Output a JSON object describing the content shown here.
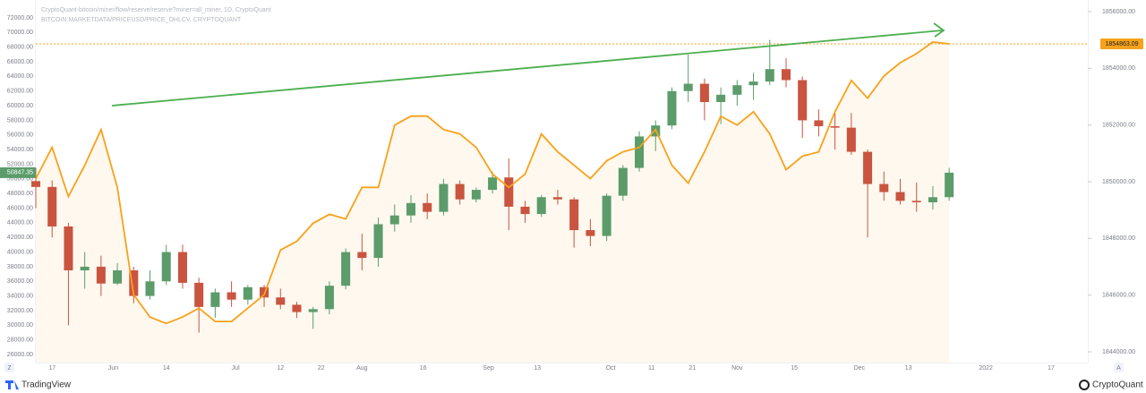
{
  "chart_data": {
    "type": "candlestick",
    "title": "CryptoQuant-bitcoin/miner/flow/reserve/reserve?miner=all_miner, 1D, CryptoQuant",
    "subtitle": "BITCOIN:MARKETDATA/PRICEUSD/PRICE_OHLCV, CRYPTOQUANT",
    "footer_left": "TradingView",
    "footer_right": "CryptoQuant",
    "corner_left": "Z",
    "corner_right": "A",
    "grid": true,
    "up_color": "#5b9c6a",
    "down_color": "#c9543f",
    "xlim": [
      "2021-05-13",
      "2022-01-26"
    ],
    "xticks": [
      {
        "value": "2021-05-17",
        "label": "17"
      },
      {
        "value": "2021-06-01",
        "label": "Jun"
      },
      {
        "value": "2021-06-14",
        "label": "14"
      },
      {
        "value": "2021-07-01",
        "label": "Jul"
      },
      {
        "value": "2021-07-12",
        "label": "12"
      },
      {
        "value": "2021-07-22",
        "label": "22"
      },
      {
        "value": "2021-08-01",
        "label": "Aug"
      },
      {
        "value": "2021-08-16",
        "label": "16"
      },
      {
        "value": "2021-09-01",
        "label": "Sep"
      },
      {
        "value": "2021-09-13",
        "label": "13"
      },
      {
        "value": "2021-10-01",
        "label": "Oct"
      },
      {
        "value": "2021-10-11",
        "label": "11"
      },
      {
        "value": "2021-10-21",
        "label": "21"
      },
      {
        "value": "2021-11-01",
        "label": "Nov"
      },
      {
        "value": "2021-11-15",
        "label": "15"
      },
      {
        "value": "2021-12-01",
        "label": "Dec"
      },
      {
        "value": "2021-12-13",
        "label": "13"
      },
      {
        "value": "2022-01-01",
        "label": "2022"
      },
      {
        "value": "2022-01-17",
        "label": "17"
      }
    ],
    "ylim": [
      26000,
      72000
    ],
    "yticks": [
      {
        "value": 72000,
        "label": "72000.00"
      },
      {
        "value": 70000,
        "label": "70000.00"
      },
      {
        "value": 68000,
        "label": "68000.00"
      },
      {
        "value": 66000,
        "label": "66000.00"
      },
      {
        "value": 64000,
        "label": "64000.00"
      },
      {
        "value": 62000,
        "label": "62000.00"
      },
      {
        "value": 60000,
        "label": "60000.00"
      },
      {
        "value": 58000,
        "label": "58000.00"
      },
      {
        "value": 56000,
        "label": "56000.00"
      },
      {
        "value": 54000,
        "label": "54000.00"
      },
      {
        "value": 52000,
        "label": "52000.00"
      },
      {
        "value": 50000,
        "label": "50000.00"
      },
      {
        "value": 48000,
        "label": "48000.00"
      },
      {
        "value": 46000,
        "label": "46000.00"
      },
      {
        "value": 44000,
        "label": "44000.00"
      },
      {
        "value": 42000,
        "label": "42000.00"
      },
      {
        "value": 40000,
        "label": "40000.00"
      },
      {
        "value": 38000,
        "label": "38000.00"
      },
      {
        "value": 36000,
        "label": "36000.00"
      },
      {
        "value": 34000,
        "label": "34000.00"
      },
      {
        "value": 32000,
        "label": "32000.00"
      },
      {
        "value": 30000,
        "label": "30000.00"
      },
      {
        "value": 28000,
        "label": "28000.00"
      },
      {
        "value": 26000,
        "label": "26000.00"
      }
    ],
    "y2lim": [
      1844000,
      1856000
    ],
    "y2ticks": [
      {
        "value": 1856000,
        "label": "1856000.00"
      },
      {
        "value": 1854000,
        "label": "1854000.00"
      },
      {
        "value": 1852000,
        "label": "1852000.00"
      },
      {
        "value": 1850000,
        "label": "1850000.00"
      },
      {
        "value": 1848000,
        "label": "1848000.00"
      },
      {
        "value": 1846000,
        "label": "1846000.00"
      },
      {
        "value": 1844000,
        "label": "1844000.00"
      }
    ],
    "x": [
      "2021-05-13",
      "2021-05-17",
      "2021-05-21",
      "2021-05-25",
      "2021-05-29",
      "2021-06-02",
      "2021-06-06",
      "2021-06-10",
      "2021-06-14",
      "2021-06-18",
      "2021-06-22",
      "2021-06-26",
      "2021-06-30",
      "2021-07-04",
      "2021-07-08",
      "2021-07-12",
      "2021-07-16",
      "2021-07-20",
      "2021-07-24",
      "2021-07-28",
      "2021-08-01",
      "2021-08-05",
      "2021-08-09",
      "2021-08-13",
      "2021-08-17",
      "2021-08-21",
      "2021-08-25",
      "2021-08-29",
      "2021-09-02",
      "2021-09-06",
      "2021-09-10",
      "2021-09-14",
      "2021-09-18",
      "2021-09-22",
      "2021-09-26",
      "2021-09-30",
      "2021-10-04",
      "2021-10-08",
      "2021-10-12",
      "2021-10-16",
      "2021-10-20",
      "2021-10-24",
      "2021-10-28",
      "2021-11-01",
      "2021-11-05",
      "2021-11-09",
      "2021-11-13",
      "2021-11-17",
      "2021-11-21",
      "2021-11-25",
      "2021-11-29",
      "2021-12-03",
      "2021-12-07",
      "2021-12-11",
      "2021-12-15",
      "2021-12-19",
      "2021-12-23"
    ],
    "candles": [
      [
        49700,
        51500,
        46000,
        48900
      ],
      [
        48900,
        49800,
        42000,
        43500
      ],
      [
        43500,
        44000,
        30000,
        37500
      ],
      [
        37500,
        40000,
        35000,
        38000
      ],
      [
        38000,
        39500,
        34000,
        35700
      ],
      [
        35700,
        38500,
        35500,
        37500
      ],
      [
        37500,
        38000,
        33000,
        34000
      ],
      [
        34000,
        37500,
        33500,
        36000
      ],
      [
        36000,
        41000,
        35500,
        40000
      ],
      [
        40000,
        41000,
        35000,
        35800
      ],
      [
        35800,
        36500,
        29000,
        32500
      ],
      [
        32500,
        35000,
        31000,
        34500
      ],
      [
        34500,
        36000,
        32500,
        33500
      ],
      [
        33500,
        35500,
        32800,
        35200
      ],
      [
        35200,
        35500,
        32500,
        33800
      ],
      [
        33800,
        35000,
        32200,
        32800
      ],
      [
        32800,
        33200,
        31000,
        31800
      ],
      [
        31800,
        32500,
        29500,
        32200
      ],
      [
        32200,
        36000,
        31500,
        35400
      ],
      [
        35400,
        40500,
        34900,
        40000
      ],
      [
        40000,
        42500,
        37500,
        39200
      ],
      [
        39200,
        44700,
        38000,
        43800
      ],
      [
        43800,
        46500,
        42800,
        45000
      ],
      [
        45000,
        47800,
        44000,
        46700
      ],
      [
        46700,
        48000,
        44500,
        45500
      ],
      [
        45500,
        50000,
        45000,
        49300
      ],
      [
        49300,
        49800,
        46500,
        47200
      ],
      [
        47200,
        48800,
        46800,
        48500
      ],
      [
        48500,
        51000,
        48000,
        50200
      ],
      [
        50200,
        52800,
        43000,
        46200
      ],
      [
        46200,
        47000,
        44000,
        45200
      ],
      [
        45200,
        47800,
        44800,
        47500
      ],
      [
        47500,
        48500,
        46500,
        47200
      ],
      [
        47200,
        47500,
        40600,
        43000
      ],
      [
        43000,
        44500,
        40800,
        42200
      ],
      [
        42200,
        48000,
        41500,
        47700
      ],
      [
        47700,
        51900,
        47000,
        51500
      ],
      [
        51500,
        56500,
        51000,
        55800
      ],
      [
        55800,
        58000,
        53800,
        57300
      ],
      [
        57300,
        62500,
        56800,
        62000
      ],
      [
        62000,
        67000,
        60500,
        63000
      ],
      [
        63000,
        63700,
        58000,
        60500
      ],
      [
        60500,
        62500,
        57500,
        61500
      ],
      [
        61500,
        63500,
        60000,
        62800
      ],
      [
        62800,
        64500,
        60800,
        63300
      ],
      [
        63300,
        69000,
        62800,
        65000
      ],
      [
        65000,
        66500,
        62500,
        63500
      ],
      [
        63500,
        64000,
        55600,
        58000
      ],
      [
        58000,
        59500,
        55800,
        57200
      ],
      [
        57200,
        59300,
        54000,
        57000
      ],
      [
        57000,
        59000,
        53300,
        53700
      ],
      [
        53700,
        54000,
        42000,
        49300
      ],
      [
        49300,
        51000,
        47000,
        48200
      ],
      [
        48200,
        50000,
        46500,
        47000
      ],
      [
        47000,
        49500,
        45500,
        46800
      ],
      [
        46800,
        49000,
        45800,
        47500
      ],
      [
        47500,
        51500,
        47000,
        50847.35
      ]
    ],
    "line": {
      "color": "#f7a21b",
      "axis": "y2",
      "values": [
        1850110,
        1851212,
        1849480,
        1850580,
        1851840,
        1849795,
        1846015,
        1845230,
        1845000,
        1845230,
        1845540,
        1845070,
        1845070,
        1845540,
        1846015,
        1847590,
        1847900,
        1848535,
        1848850,
        1848690,
        1849800,
        1849800,
        1852000,
        1852315,
        1852315,
        1851840,
        1851685,
        1851210,
        1850270,
        1849800,
        1850270,
        1851685,
        1851055,
        1850580,
        1850110,
        1850740,
        1851055,
        1851210,
        1851840,
        1850580,
        1849950,
        1851055,
        1852315,
        1852000,
        1852470,
        1851685,
        1850425,
        1850900,
        1851055,
        1852470,
        1853575,
        1852945,
        1853730,
        1854200,
        1854520,
        1854930,
        1854863.09
      ]
    }
  }
}
